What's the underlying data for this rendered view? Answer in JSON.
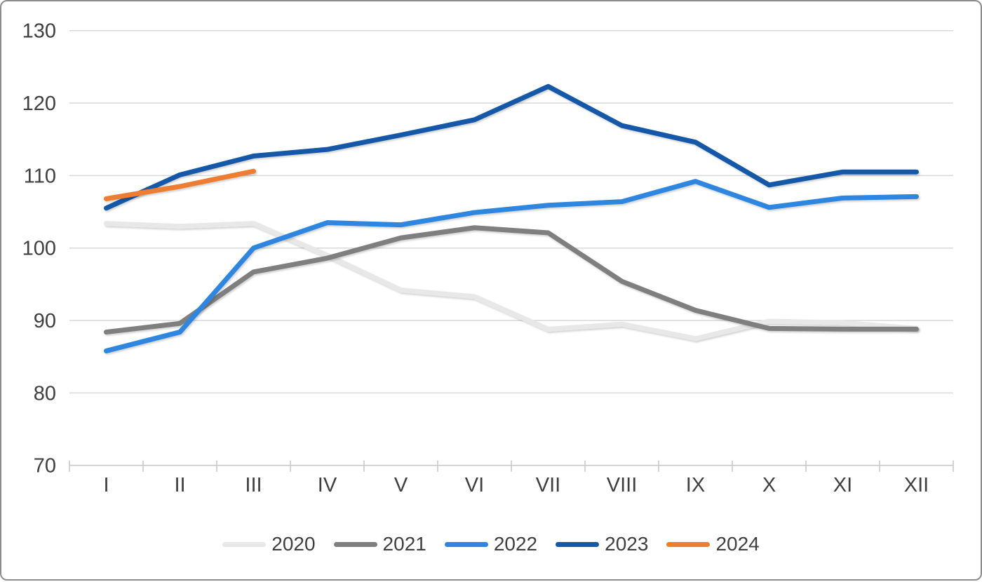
{
  "chart_data": {
    "type": "line",
    "title": "",
    "categories": [
      "I",
      "II",
      "III",
      "IV",
      "V",
      "VI",
      "VII",
      "VIII",
      "IX",
      "X",
      "XI",
      "XII"
    ],
    "series": [
      {
        "name": "2020",
        "color": "#e8e8e8",
        "values": [
          103.4,
          103.0,
          103.4,
          99.0,
          94.2,
          93.3,
          88.8,
          89.5,
          87.5,
          89.9,
          89.7,
          88.9
        ]
      },
      {
        "name": "2021",
        "color": "#7f7f7f",
        "values": [
          88.4,
          89.6,
          96.7,
          98.6,
          101.4,
          102.8,
          102.1,
          95.4,
          91.4,
          88.9,
          88.8,
          88.8
        ]
      },
      {
        "name": "2022",
        "color": "#2e86e0",
        "values": [
          85.8,
          88.4,
          100.0,
          103.5,
          103.2,
          104.9,
          105.9,
          106.4,
          109.2,
          105.6,
          106.9,
          107.1
        ]
      },
      {
        "name": "2023",
        "color": "#1459a8",
        "values": [
          105.5,
          110.1,
          112.7,
          113.6,
          115.6,
          117.7,
          122.3,
          116.9,
          114.6,
          108.7,
          110.5,
          110.5
        ]
      },
      {
        "name": "2024",
        "color": "#ed7d31",
        "values": [
          106.8,
          108.5,
          110.6
        ]
      }
    ],
    "ylim": [
      70,
      130
    ],
    "y_ticks": [
      70,
      80,
      90,
      100,
      110,
      120,
      130
    ],
    "xlabel": "",
    "ylabel": "",
    "grid": true,
    "legend_position": "bottom",
    "axis_text_color": "#3f3f3f",
    "gridline_color": "#d9d9d9",
    "axis_line_color": "#c9c9c9"
  }
}
